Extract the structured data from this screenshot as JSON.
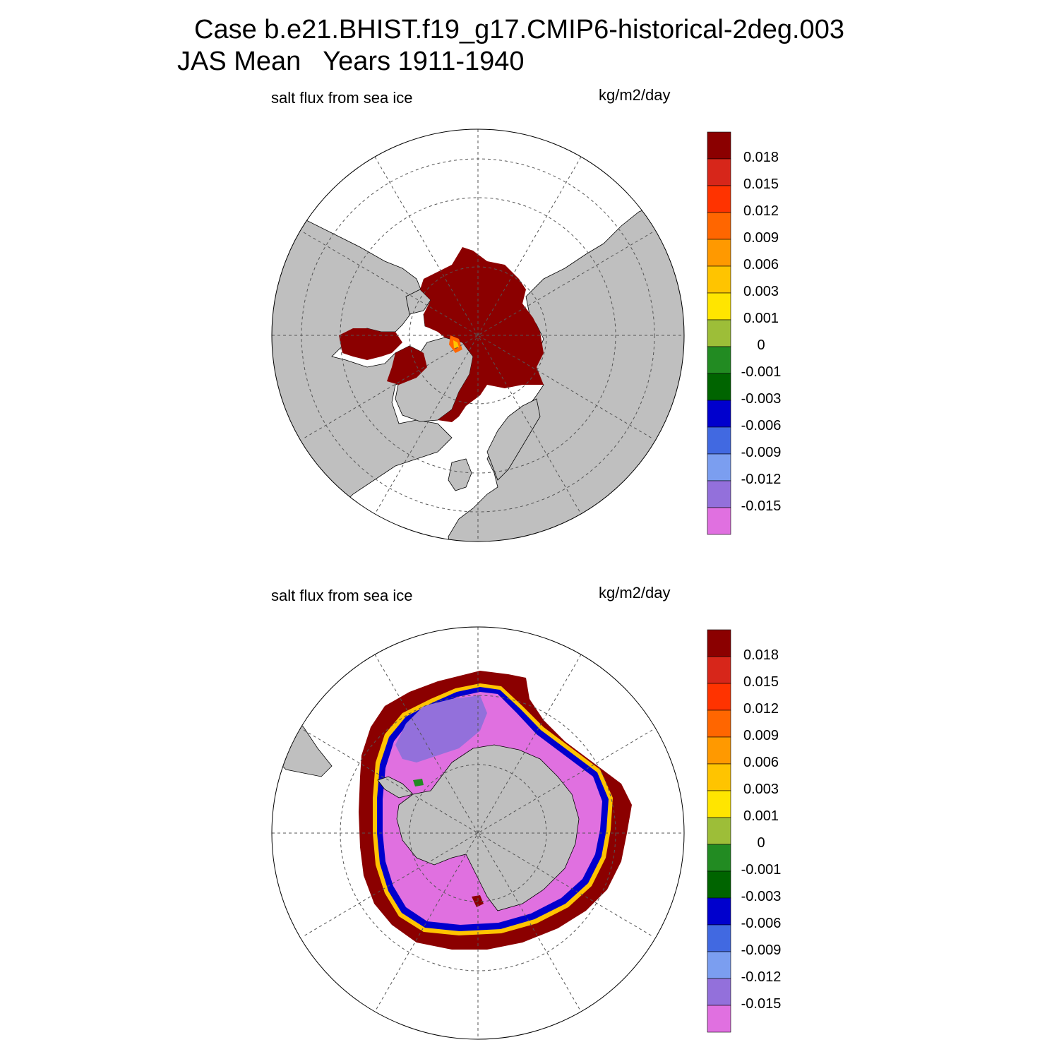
{
  "header": {
    "title_line1": "Case b.e21.BHIST.f19_g17.CMIP6-historical-2deg.003",
    "title_line2": "JAS Mean   Years 1911-1940"
  },
  "panels": [
    {
      "id": "north",
      "label": "salt flux from sea ice",
      "units": "kg/m2/day"
    },
    {
      "id": "south",
      "label": "salt flux from sea ice",
      "units": "kg/m2/day"
    }
  ],
  "colorbar": {
    "labels": [
      "0.018",
      "0.015",
      "0.012",
      "0.009",
      "0.006",
      "0.003",
      "0.001",
      "0",
      "-0.001",
      "-0.003",
      "-0.006",
      "-0.009",
      "-0.012",
      "-0.015"
    ],
    "colors": [
      "#8b0000",
      "#d7261a",
      "#ff3300",
      "#ff6600",
      "#ff9900",
      "#ffc400",
      "#ffe500",
      "#9dbe38",
      "#228b22",
      "#006400",
      "#0000cd",
      "#4169e1",
      "#7b9ef0",
      "#9370db",
      "#e070e0"
    ]
  },
  "map_colors": {
    "land": "#bfbfbf",
    "ocean": "#ffffff"
  }
}
